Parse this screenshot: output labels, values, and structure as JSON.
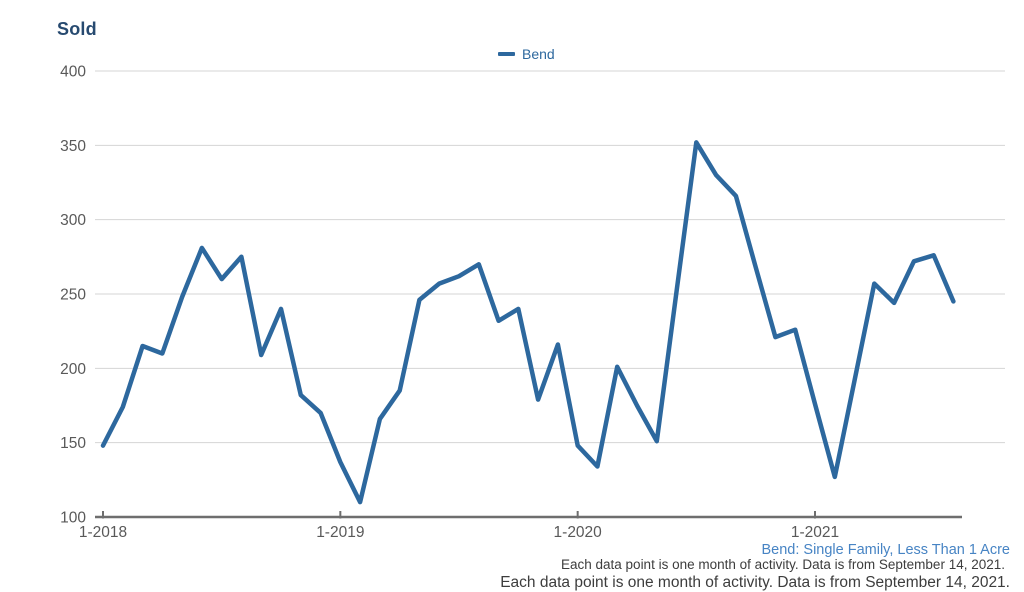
{
  "title": "Sold",
  "legend": {
    "label": "Bend"
  },
  "footer": {
    "segment_label": "Bend: Single Family, Less Than 1 Acre",
    "footnote": "Each data point is one month of activity. Data is from September 14, 2021.",
    "partial_footnote": "Each data point is one month of activity. Data is from September 14, 2021."
  },
  "colors": {
    "line": "#2d689e",
    "title_text": "#274a70",
    "legend_text": "#2d689e",
    "axis_text": "#595959",
    "grid_line": "#d4d4d4",
    "axis_line": "#6e6e6e",
    "segment_link_blue": "#4784c4",
    "footnote_text": "#3d3d3d"
  },
  "chart_data": {
    "type": "line",
    "title": "Sold",
    "xlabel": "",
    "ylabel": "",
    "ylim": [
      100,
      400
    ],
    "y_ticks": [
      100,
      150,
      200,
      250,
      300,
      350,
      400
    ],
    "grid": "horizontal",
    "legend_position": "top-center",
    "x_tick_labels": [
      "1-2018",
      "1-2019",
      "1-2020",
      "1-2021"
    ],
    "categories": [
      "1-2018",
      "2-2018",
      "3-2018",
      "4-2018",
      "5-2018",
      "6-2018",
      "7-2018",
      "8-2018",
      "9-2018",
      "10-2018",
      "11-2018",
      "12-2018",
      "1-2019",
      "2-2019",
      "3-2019",
      "4-2019",
      "5-2019",
      "6-2019",
      "7-2019",
      "8-2019",
      "9-2019",
      "10-2019",
      "11-2019",
      "12-2019",
      "1-2020",
      "2-2020",
      "3-2020",
      "4-2020",
      "5-2020",
      "6-2020",
      "7-2020",
      "8-2020",
      "9-2020",
      "10-2020",
      "11-2020",
      "12-2020",
      "1-2021",
      "2-2021",
      "3-2021",
      "4-2021",
      "5-2021",
      "6-2021",
      "7-2021",
      "8-2021"
    ],
    "series": [
      {
        "name": "Bend",
        "values": [
          148,
          174,
          215,
          210,
          248,
          281,
          260,
          275,
          209,
          240,
          182,
          170,
          137,
          110,
          166,
          185,
          246,
          257,
          262,
          270,
          232,
          240,
          179,
          216,
          148,
          134,
          201,
          175,
          151,
          252,
          352,
          330,
          316,
          268,
          221,
          226,
          176,
          127,
          192,
          257,
          244,
          272,
          276,
          245
        ]
      }
    ]
  }
}
